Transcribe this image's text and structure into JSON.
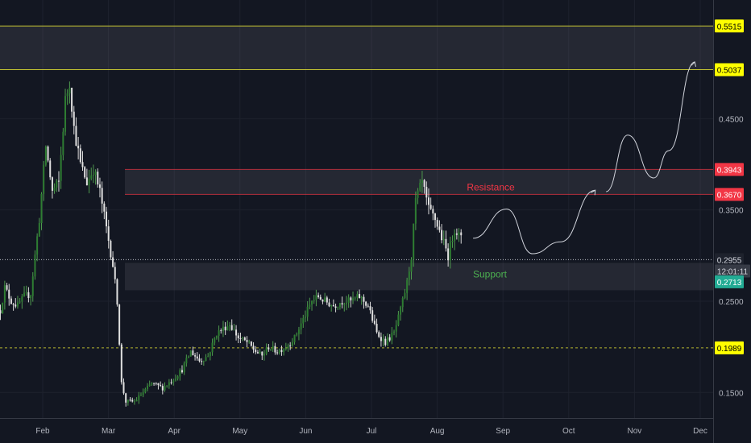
{
  "chart_data": {
    "type": "candlestick",
    "x_axis": {
      "labels": [
        "Feb",
        "Mar",
        "Apr",
        "May",
        "Jun",
        "Jul",
        "Aug",
        "Sep",
        "Oct",
        "Nov",
        "Dec"
      ]
    },
    "y_axis": {
      "ticks": [
        "0.4500",
        "0.3500",
        "0.2500",
        "0.1500"
      ],
      "range": [
        0.122,
        0.58
      ]
    },
    "price_tags": [
      {
        "value": 0.5515,
        "label": "0.5515",
        "bg": "#ffff00",
        "fg": "#000000"
      },
      {
        "value": 0.5037,
        "label": "0.5037",
        "bg": "#ffff00",
        "fg": "#000000"
      },
      {
        "value": 0.3943,
        "label": "0.3943",
        "bg": "#f23645",
        "fg": "#ffffff"
      },
      {
        "value": 0.367,
        "label": "0.3670",
        "bg": "#f23645",
        "fg": "#ffffff"
      },
      {
        "value": 0.2955,
        "label": "0.2955",
        "bg": "#1e222d",
        "fg": "#d1d4dc"
      },
      {
        "value": 0.283,
        "label": "12:01:11",
        "bg": "#363a45",
        "fg": "#d1d4dc"
      },
      {
        "value": 0.2713,
        "label": "0.2713",
        "bg": "#22ab94",
        "fg": "#ffffff"
      },
      {
        "value": 0.1989,
        "label": "0.1989",
        "bg": "#ffff00",
        "fg": "#000000"
      }
    ],
    "zones": [
      {
        "name": "top-zone",
        "label": "",
        "high": 0.5515,
        "low": 0.5037,
        "line_color": "#c8c832",
        "label_color": ""
      },
      {
        "name": "resistance-zone",
        "label": "Resistance",
        "high": 0.3943,
        "low": 0.367,
        "line_color": "#f23645",
        "label_color": "#f23645"
      },
      {
        "name": "support-zone",
        "label": "Support",
        "high": 0.292,
        "low": 0.262,
        "line_color": "#4caf50",
        "label_color": "#4caf50"
      }
    ],
    "hlines": [
      {
        "value": 0.2955,
        "style": "dotted",
        "color": "#d1d4dc"
      },
      {
        "value": 0.1989,
        "style": "dashed",
        "color": "#c8c832"
      }
    ],
    "timeline_days": 330,
    "series": [
      {
        "name": "price",
        "anchors": [
          [
            0,
            0.24
          ],
          [
            2,
            0.265
          ],
          [
            5,
            0.25
          ],
          [
            8,
            0.245
          ],
          [
            11,
            0.255
          ],
          [
            14,
            0.258
          ],
          [
            16,
            0.3
          ],
          [
            18,
            0.34
          ],
          [
            21,
            0.42
          ],
          [
            24,
            0.37
          ],
          [
            27,
            0.38
          ],
          [
            30,
            0.47
          ],
          [
            32,
            0.49
          ],
          [
            34,
            0.44
          ],
          [
            37,
            0.4
          ],
          [
            40,
            0.38
          ],
          [
            43,
            0.395
          ],
          [
            46,
            0.37
          ],
          [
            49,
            0.33
          ],
          [
            52,
            0.29
          ],
          [
            54,
            0.25
          ],
          [
            56,
            0.16
          ],
          [
            58,
            0.14
          ],
          [
            62,
            0.14
          ],
          [
            66,
            0.15
          ],
          [
            70,
            0.16
          ],
          [
            75,
            0.155
          ],
          [
            80,
            0.165
          ],
          [
            84,
            0.175
          ],
          [
            88,
            0.195
          ],
          [
            92,
            0.185
          ],
          [
            96,
            0.19
          ],
          [
            100,
            0.215
          ],
          [
            103,
            0.22
          ],
          [
            106,
            0.225
          ],
          [
            110,
            0.21
          ],
          [
            114,
            0.205
          ],
          [
            118,
            0.195
          ],
          [
            121,
            0.19
          ],
          [
            124,
            0.2
          ],
          [
            128,
            0.195
          ],
          [
            132,
            0.2
          ],
          [
            136,
            0.21
          ],
          [
            140,
            0.23
          ],
          [
            144,
            0.25
          ],
          [
            147,
            0.255
          ],
          [
            150,
            0.25
          ],
          [
            154,
            0.245
          ],
          [
            158,
            0.25
          ],
          [
            162,
            0.25
          ],
          [
            166,
            0.255
          ],
          [
            170,
            0.245
          ],
          [
            174,
            0.215
          ],
          [
            178,
            0.205
          ],
          [
            182,
            0.215
          ],
          [
            185,
            0.24
          ],
          [
            188,
            0.27
          ],
          [
            190,
            0.3
          ],
          [
            192,
            0.36
          ],
          [
            195,
            0.38
          ],
          [
            198,
            0.35
          ],
          [
            201,
            0.34
          ],
          [
            204,
            0.32
          ],
          [
            207,
            0.3
          ],
          [
            210,
            0.33
          ],
          [
            213,
            0.318
          ]
        ]
      }
    ],
    "projections": [
      {
        "points": [
          [
            0.5,
            0.319
          ],
          [
            16,
            0.351
          ],
          [
            28,
            0.302
          ],
          [
            41,
            0.315
          ],
          [
            57,
            0.3715
          ]
        ]
      },
      {
        "points": [
          [
            62,
            0.37
          ],
          [
            72,
            0.432
          ],
          [
            84,
            0.385
          ],
          [
            91,
            0.415
          ],
          [
            103,
            0.512
          ]
        ]
      }
    ]
  }
}
